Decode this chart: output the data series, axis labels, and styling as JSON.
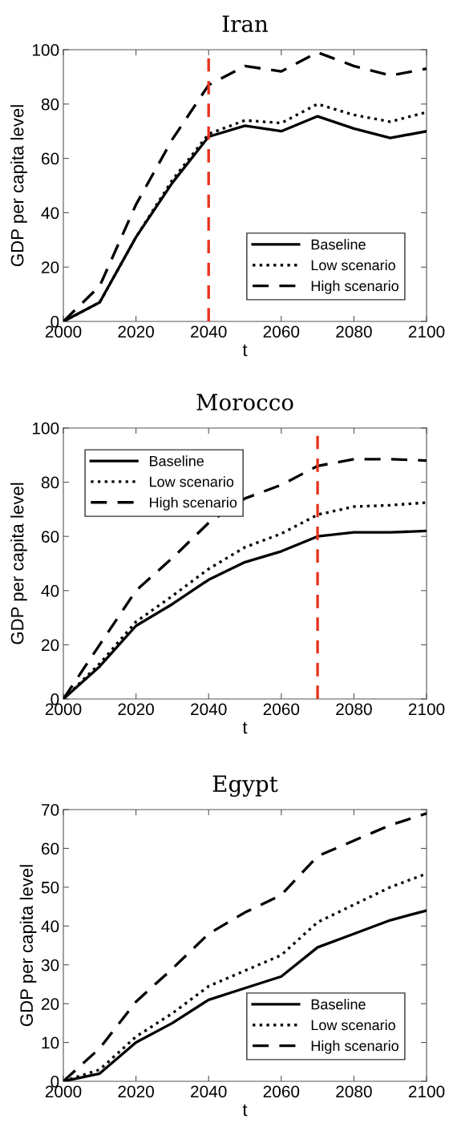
{
  "chart_data": [
    {
      "type": "line",
      "title": "Iran",
      "xlabel": "t",
      "ylabel": "GDP per capita level",
      "x": [
        2000,
        2010,
        2020,
        2030,
        2040,
        2050,
        2060,
        2070,
        2080,
        2090,
        2100
      ],
      "series": [
        {
          "name": "Baseline",
          "color": "#000000",
          "line_style": "solid",
          "values": [
            0,
            7,
            31,
            51,
            68,
            72,
            70,
            75.5,
            71,
            67.5,
            70
          ]
        },
        {
          "name": "Low scenario",
          "color": "#000000",
          "line_style": "dotted",
          "values": [
            0,
            7,
            31,
            52,
            69,
            74,
            73,
            80,
            76,
            73.5,
            77
          ]
        },
        {
          "name": "High scenario",
          "color": "#000000",
          "line_style": "dashed",
          "values": [
            0,
            13,
            43,
            67,
            87,
            94,
            92,
            99,
            94,
            90.5,
            93
          ]
        }
      ],
      "xlim": [
        2000,
        2100
      ],
      "xticks": [
        2000,
        2020,
        2040,
        2060,
        2080,
        2100
      ],
      "ylim": [
        0,
        100
      ],
      "yticks": [
        0,
        20,
        40,
        60,
        80,
        100
      ],
      "ref_lines": [
        {
          "axis": "x",
          "value": 2040,
          "color": "#e8321e",
          "line_style": "dashed"
        }
      ],
      "legend": "bottom right",
      "grid": false,
      "marker": "none"
    },
    {
      "type": "line",
      "title": "Morocco",
      "xlabel": "t",
      "ylabel": "GDP per capita level",
      "x": [
        2000,
        2010,
        2020,
        2030,
        2040,
        2050,
        2060,
        2070,
        2080,
        2090,
        2100
      ],
      "series": [
        {
          "name": "Baseline",
          "color": "#000000",
          "line_style": "solid",
          "values": [
            0,
            12,
            27,
            35,
            44,
            50.5,
            54.5,
            60,
            61.5,
            61.5,
            62
          ]
        },
        {
          "name": "Low scenario",
          "color": "#000000",
          "line_style": "dotted",
          "values": [
            0,
            13,
            28.5,
            38,
            48,
            56,
            61,
            68,
            71,
            71.5,
            72.5
          ]
        },
        {
          "name": "High scenario",
          "color": "#000000",
          "line_style": "dashed",
          "values": [
            0,
            20,
            40,
            52,
            65,
            74,
            79,
            86,
            88.5,
            88.5,
            88
          ]
        }
      ],
      "xlim": [
        2000,
        2100
      ],
      "xticks": [
        2000,
        2020,
        2040,
        2060,
        2080,
        2100
      ],
      "ylim": [
        0,
        100
      ],
      "yticks": [
        0,
        20,
        40,
        60,
        80,
        100
      ],
      "ref_lines": [
        {
          "axis": "x",
          "value": 2070,
          "color": "#e8321e",
          "line_style": "dashed"
        }
      ],
      "legend": "top left",
      "grid": false,
      "marker": "none"
    },
    {
      "type": "line",
      "title": "Egypt",
      "xlabel": "t",
      "ylabel": "GDP per capita level",
      "x": [
        2000,
        2010,
        2020,
        2030,
        2040,
        2050,
        2060,
        2070,
        2080,
        2090,
        2100
      ],
      "series": [
        {
          "name": "Baseline",
          "color": "#000000",
          "line_style": "solid",
          "values": [
            0,
            2,
            10,
            15,
            21,
            24,
            27,
            34.5,
            38,
            41.5,
            44
          ]
        },
        {
          "name": "Low scenario",
          "color": "#000000",
          "line_style": "dotted",
          "values": [
            0,
            3,
            11.5,
            17.5,
            24.5,
            28.5,
            32.5,
            41,
            45.5,
            50,
            53.5
          ]
        },
        {
          "name": "High scenario",
          "color": "#000000",
          "line_style": "dashed",
          "values": [
            0,
            8.5,
            20.5,
            29,
            38,
            43.5,
            48,
            58,
            62,
            66,
            69
          ]
        }
      ],
      "xlim": [
        2000,
        2100
      ],
      "xticks": [
        2000,
        2020,
        2040,
        2060,
        2080,
        2100
      ],
      "ylim": [
        0,
        70
      ],
      "yticks": [
        0,
        10,
        20,
        30,
        40,
        50,
        60,
        70
      ],
      "legend": "bottom right",
      "grid": false,
      "marker": "none"
    }
  ]
}
